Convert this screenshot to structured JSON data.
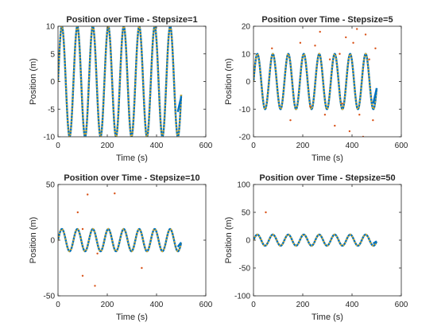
{
  "colors": {
    "series_solid": "#0072BD",
    "series_dotted": "#EDB120",
    "series_outliers": "#D95319",
    "axes": "#262626"
  },
  "chart_data": [
    {
      "type": "line",
      "title": "Position over Time - Stepsize=1",
      "xlabel": "Time (s)",
      "ylabel": "Position (m)",
      "xlim": [
        0,
        600
      ],
      "ylim": [
        -10,
        10
      ],
      "xticks": [
        "0",
        "200",
        "400",
        "600"
      ],
      "yticks": [
        "-10",
        "-5",
        "0",
        "5",
        "10"
      ],
      "xtick_values": [
        0,
        200,
        400,
        600
      ],
      "ytick_values": [
        -10,
        -5,
        0,
        5,
        10
      ],
      "wave": {
        "amplitude": 10,
        "period": 62.8,
        "phase": 0,
        "x_end": 500
      },
      "end_segment": [
        [
          486,
          -5.5
        ],
        [
          500,
          -2.8
        ]
      ],
      "outliers": []
    },
    {
      "type": "line",
      "title": "Position over Time - Stepsize=5",
      "xlabel": "Time (s)",
      "ylabel": "Position (m)",
      "xlim": [
        0,
        600
      ],
      "ylim": [
        -20,
        20
      ],
      "xticks": [
        "0",
        "200",
        "400",
        "600"
      ],
      "yticks": [
        "-20",
        "-10",
        "0",
        "10",
        "20"
      ],
      "xtick_values": [
        0,
        200,
        400,
        600
      ],
      "ytick_values": [
        -20,
        -10,
        0,
        10,
        20
      ],
      "wave": {
        "amplitude": 10,
        "period": 62.8,
        "phase": 0,
        "x_end": 500
      },
      "end_segment": [
        [
          486,
          -8
        ],
        [
          500,
          -2.5
        ]
      ],
      "outliers": [
        [
          75,
          12
        ],
        [
          150,
          -14
        ],
        [
          190,
          14
        ],
        [
          230,
          -9
        ],
        [
          250,
          13
        ],
        [
          270,
          18
        ],
        [
          290,
          -12
        ],
        [
          310,
          8
        ],
        [
          330,
          -16
        ],
        [
          350,
          10
        ],
        [
          360,
          -8
        ],
        [
          375,
          16
        ],
        [
          390,
          -18
        ],
        [
          405,
          14
        ],
        [
          420,
          19
        ],
        [
          430,
          -12
        ],
        [
          445,
          -20
        ],
        [
          455,
          17
        ],
        [
          470,
          8
        ],
        [
          485,
          -14
        ],
        [
          495,
          12
        ]
      ]
    },
    {
      "type": "line",
      "title": "Position over Time - Stepsize=10",
      "xlabel": "Time (s)",
      "ylabel": "Position (m)",
      "xlim": [
        0,
        600
      ],
      "ylim": [
        -50,
        50
      ],
      "xticks": [
        "0",
        "200",
        "400",
        "600"
      ],
      "yticks": [
        "-50",
        "0",
        "50"
      ],
      "xtick_values": [
        0,
        200,
        400,
        600
      ],
      "ytick_values": [
        -50,
        0,
        50
      ],
      "wave": {
        "amplitude": 10,
        "period": 62.8,
        "phase": 0,
        "x_end": 500
      },
      "end_segment": [
        [
          486,
          -6
        ],
        [
          500,
          -2
        ]
      ],
      "outliers": [
        [
          80,
          25
        ],
        [
          100,
          -32
        ],
        [
          120,
          41
        ],
        [
          150,
          -41
        ],
        [
          230,
          42
        ],
        [
          340,
          -25
        ],
        [
          100,
          10
        ],
        [
          160,
          -12
        ]
      ]
    },
    {
      "type": "line",
      "title": "Position over Time - Stepsize=50",
      "xlabel": "Time (s)",
      "ylabel": "Position (m)",
      "xlim": [
        0,
        600
      ],
      "ylim": [
        -100,
        100
      ],
      "xticks": [
        "0",
        "200",
        "400",
        "600"
      ],
      "yticks": [
        "-100",
        "-50",
        "0",
        "50",
        "100"
      ],
      "xtick_values": [
        0,
        200,
        400,
        600
      ],
      "ytick_values": [
        -100,
        -50,
        0,
        50,
        100
      ],
      "wave": {
        "amplitude": 10,
        "period": 62.8,
        "phase": 0,
        "x_end": 500
      },
      "end_segment": [
        [
          486,
          -6
        ],
        [
          500,
          -2
        ]
      ],
      "outliers": [
        [
          50,
          50
        ]
      ]
    }
  ]
}
